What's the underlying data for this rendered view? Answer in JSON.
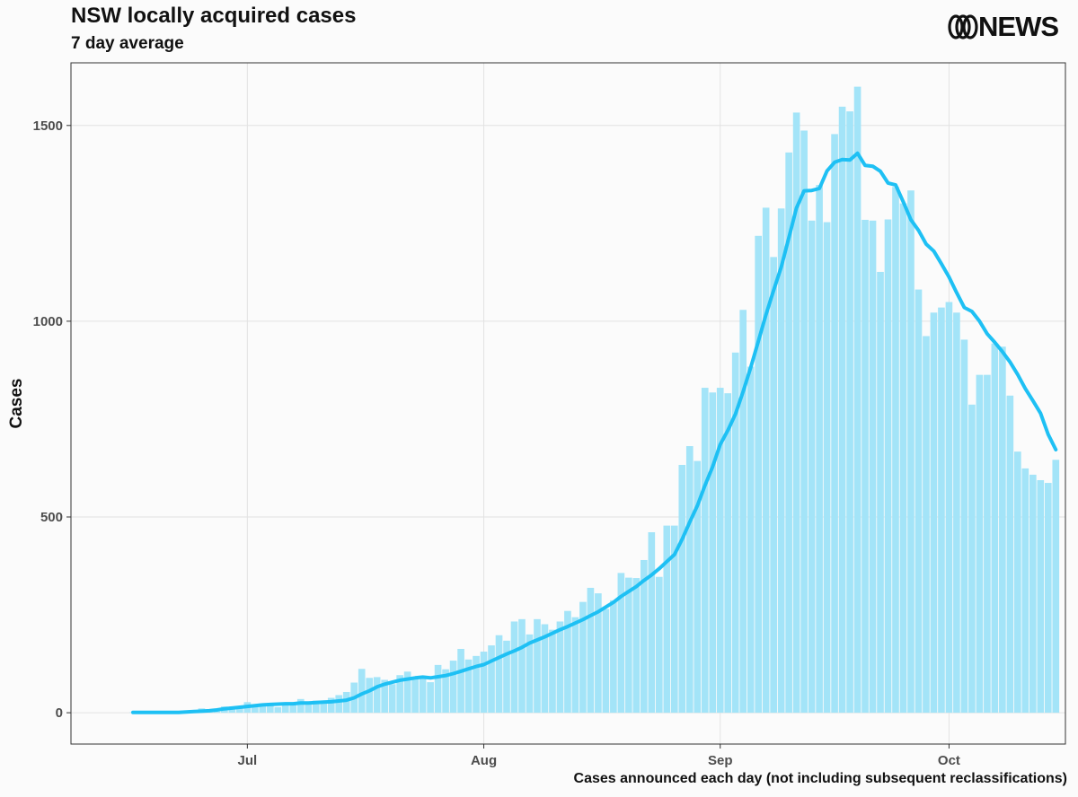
{
  "header": {
    "title": "NSW locally acquired cases",
    "subtitle": "7 day average",
    "logo_text": "NEWS"
  },
  "caption": "Cases announced each day (not including subsequent reclassifications)",
  "colors": {
    "bar": "#a3e4f8",
    "line": "#1ec0f4",
    "grid": "#e2e2e2",
    "panel_border": "#333333",
    "axis_text": "#4d4d4d"
  },
  "chart_data": {
    "type": "bar",
    "title": "NSW locally acquired cases",
    "subtitle": "7 day average",
    "ylabel": "Cases",
    "xlabel": "",
    "ylim": [
      -80,
      1660
    ],
    "yticks": [
      0,
      500,
      1000,
      1500
    ],
    "x_start_date": "2021-06-16",
    "xticks": [
      {
        "label": "Jul",
        "day": 15
      },
      {
        "label": "Aug",
        "day": 46
      },
      {
        "label": "Sep",
        "day": 77
      },
      {
        "label": "Oct",
        "day": 107
      }
    ],
    "grid": true,
    "legend": "none",
    "series": [
      {
        "kind": "bar",
        "values": [
          1,
          1,
          1,
          2,
          2,
          1,
          2,
          3,
          5,
          11,
          6,
          3,
          16,
          11,
          16,
          27,
          18,
          24,
          24,
          14,
          20,
          20,
          35,
          24,
          31,
          29,
          38,
          45,
          53,
          77,
          112,
          89,
          91,
          84,
          73,
          96,
          105,
          90,
          88,
          78,
          122,
          111,
          133,
          163,
          136,
          145,
          156,
          172,
          198,
          184,
          233,
          239,
          200,
          239,
          226,
          212,
          233,
          260,
          244,
          283,
          319,
          305,
          265,
          287,
          357,
          345,
          344,
          390,
          461,
          347,
          478,
          478,
          633,
          681,
          643,
          830,
          818,
          830,
          816,
          920,
          1029,
          884,
          1218,
          1290,
          1164,
          1288,
          1431,
          1533,
          1487,
          1257,
          1348,
          1253,
          1478,
          1548,
          1536,
          1599,
          1259,
          1257,
          1126,
          1260,
          1343,
          1301,
          1334,
          1081,
          962,
          1022,
          1035,
          1049,
          1022,
          953,
          787,
          863,
          863,
          943,
          935,
          810,
          667,
          624,
          608,
          594,
          587,
          646
        ]
      },
      {
        "kind": "line",
        "name": "7 day average",
        "values": [
          1,
          1,
          1,
          1,
          1,
          1,
          1,
          2,
          3,
          4,
          5,
          7,
          10,
          12,
          14,
          16,
          18,
          20,
          21,
          22,
          23,
          23,
          25,
          25,
          26,
          27,
          28,
          30,
          32,
          38,
          48,
          56,
          66,
          73,
          78,
          83,
          86,
          89,
          91,
          89,
          92,
          95,
          100,
          106,
          112,
          118,
          123,
          132,
          141,
          150,
          158,
          167,
          178,
          186,
          194,
          203,
          212,
          220,
          229,
          238,
          248,
          258,
          270,
          282,
          297,
          310,
          322,
          338,
          352,
          368,
          386,
          404,
          443,
          487,
          529,
          581,
          628,
          685,
          721,
          763,
          820,
          882,
          949,
          1017,
          1079,
          1138,
          1213,
          1289,
          1333,
          1334,
          1339,
          1384,
          1406,
          1413,
          1412,
          1429,
          1398,
          1396,
          1383,
          1353,
          1348,
          1305,
          1259,
          1232,
          1197,
          1179,
          1147,
          1113,
          1073,
          1035,
          1025,
          1000,
          968,
          946,
          922,
          896,
          864,
          828,
          797,
          765,
          711,
          672
        ]
      }
    ]
  }
}
